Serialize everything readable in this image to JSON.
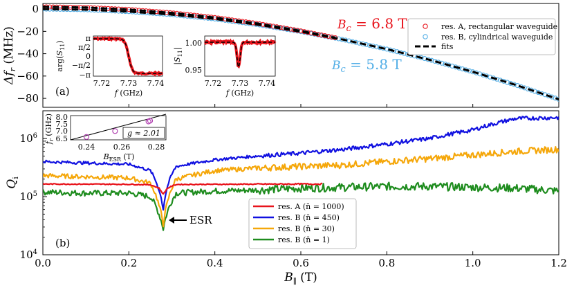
{
  "colors": {
    "resA": "#e8141c",
    "resB_cyl": "#52aee6",
    "fit": "#000000",
    "n450": "#1010e0",
    "n30": "#f5a70a",
    "n1": "#1e8c1e",
    "esr_marker": "#b040b0"
  },
  "chart_data": [
    {
      "id": "top-panel",
      "type": "line",
      "panel_label": "(a)",
      "ylabel": "Δf_r (MHz)",
      "ylim": [
        -88,
        5
      ],
      "xlim": [
        0,
        1.2
      ],
      "yticks": [
        0,
        -20,
        -40,
        -60,
        -80
      ],
      "series": [
        {
          "name": "res. A, rectangular waveguide",
          "marker": "circle",
          "color": "#e8141c",
          "x": [
            0,
            0.1,
            0.2,
            0.3,
            0.4,
            0.5,
            0.6,
            0.68
          ],
          "y": [
            2,
            1.4,
            -0.4,
            -3.4,
            -7.6,
            -13.0,
            -19.6,
            -25.7
          ]
        },
        {
          "name": "res. B, cylindrical waveguide",
          "marker": "circle",
          "color": "#52aee6",
          "x": [
            0,
            0.1,
            0.2,
            0.3,
            0.4,
            0.5,
            0.6,
            0.7,
            0.8,
            0.9,
            1.0,
            1.1,
            1.2
          ],
          "y": [
            0,
            -0.6,
            -2.3,
            -5.0,
            -8.9,
            -14.0,
            -20.2,
            -27.5,
            -35.9,
            -45.5,
            -56.2,
            -68.0,
            -80.8
          ]
        },
        {
          "name": "fits",
          "style": "dashed",
          "color": "#000000"
        }
      ],
      "annotations": [
        {
          "text_var": "B_c",
          "text_rest": " = 6.8 T",
          "color": "#e8141c"
        },
        {
          "text_var": "B_c",
          "text_rest": " = 5.8 T",
          "color": "#52aee6"
        }
      ],
      "insets": [
        {
          "xlabel": "f (GHz)",
          "ylabel": "arg(S_11)",
          "xticks": [
            "7.72",
            "7.73",
            "7.74"
          ],
          "yticks": [
            "π",
            "π/2",
            "0",
            "−π/2",
            "−π"
          ]
        },
        {
          "xlabel": "f (GHz)",
          "ylabel": "|S_11|",
          "xticks": [
            "7.72",
            "7.73",
            "7.74"
          ],
          "yticks": [
            "1.00",
            "0.95"
          ]
        }
      ]
    },
    {
      "id": "bottom-panel",
      "type": "line",
      "panel_label": "(b)",
      "xlabel": "B_∥ (T)",
      "ylabel": "Q_i",
      "yscale": "log",
      "ylim": [
        10000,
        3000000
      ],
      "xlim": [
        0,
        1.2
      ],
      "xticks": [
        "0.0",
        "0.2",
        "0.4",
        "0.6",
        "0.8",
        "1.0",
        "1.2"
      ],
      "yticks": [
        "10^4",
        "10^5",
        "10^6"
      ],
      "series": [
        {
          "name": "res. A (n̄ = 1000)",
          "color": "#e8141c",
          "x": [
            0,
            0.2,
            0.25,
            0.27,
            0.28,
            0.29,
            0.31,
            0.4,
            0.5,
            0.65
          ],
          "y": [
            165000,
            163000,
            160000,
            140000,
            110000,
            140000,
            162000,
            163000,
            164000,
            165000
          ]
        },
        {
          "name": "res. B (n̄ = 450)",
          "color": "#1010e0",
          "x": [
            0,
            0.1,
            0.2,
            0.25,
            0.27,
            0.28,
            0.29,
            0.31,
            0.4,
            0.5,
            0.6,
            0.7,
            0.8,
            0.9,
            1.0,
            1.1,
            1.2
          ],
          "y": [
            400000,
            380000,
            360000,
            280000,
            130000,
            60000,
            150000,
            330000,
            430000,
            500000,
            560000,
            650000,
            800000,
            1000000,
            1400000,
            2200000,
            2300000
          ]
        },
        {
          "name": "res. B (n̄ = 30)",
          "color": "#f5a70a",
          "x": [
            0,
            0.1,
            0.2,
            0.25,
            0.27,
            0.28,
            0.29,
            0.31,
            0.4,
            0.5,
            0.6,
            0.7,
            0.8,
            0.9,
            1.0,
            1.1,
            1.2
          ],
          "y": [
            230000,
            220000,
            210000,
            170000,
            70000,
            33000,
            80000,
            200000,
            280000,
            310000,
            330000,
            350000,
            400000,
            450000,
            520000,
            600000,
            650000
          ]
        },
        {
          "name": "res. B (n̄ = 1)",
          "color": "#1e8c1e",
          "x": [
            0,
            0.1,
            0.2,
            0.25,
            0.27,
            0.28,
            0.29,
            0.31,
            0.4,
            0.5,
            0.6,
            0.7,
            0.8,
            0.9,
            1.0,
            1.1,
            1.2
          ],
          "y": [
            120000,
            115000,
            115000,
            100000,
            50000,
            28000,
            55000,
            115000,
            125000,
            130000,
            140000,
            145000,
            150000,
            150000,
            145000,
            140000,
            125000
          ]
        }
      ],
      "annotations": [
        {
          "text": "ESR"
        }
      ],
      "inset": {
        "xlabel": "B_ESR (T)",
        "ylabel": "f_r (GHz)",
        "xticks": [
          "0.24",
          "0.26",
          "0.28"
        ],
        "yticks": [
          "6.5",
          "7.0",
          "7.5",
          "8.0"
        ],
        "points": {
          "x": [
            0.235,
            0.253,
            0.274,
            0.275
          ],
          "y": [
            6.65,
            7.05,
            7.7,
            7.75
          ]
        },
        "fit_label": "g ≈ 2.01"
      }
    }
  ]
}
